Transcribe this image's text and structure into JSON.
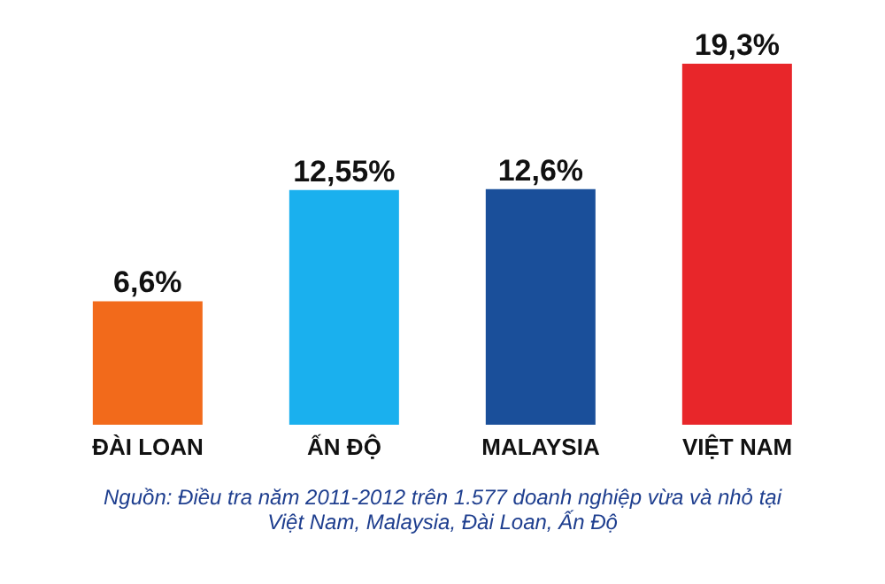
{
  "chart_data": {
    "type": "bar",
    "categories": [
      "ĐÀI LOAN",
      "ẤN ĐỘ",
      "MALAYSIA",
      "VIỆT NAM"
    ],
    "values": [
      6.6,
      12.55,
      12.6,
      19.3
    ],
    "colors": [
      "#f26a1b",
      "#1ab0ee",
      "#1a4f9a",
      "#e8262a"
    ],
    "value_labels": [
      "6,6%",
      "12,55%",
      "12,6%",
      "19,3%"
    ],
    "grid": false,
    "annotations": [
      "Nguồn: Điều tra năm 2011-2012 trên 1.577 doanh nghiệp vừa và nhỏ tại Việt Nam, Malaysia, Đài Loan, Ấn Độ"
    ]
  }
}
